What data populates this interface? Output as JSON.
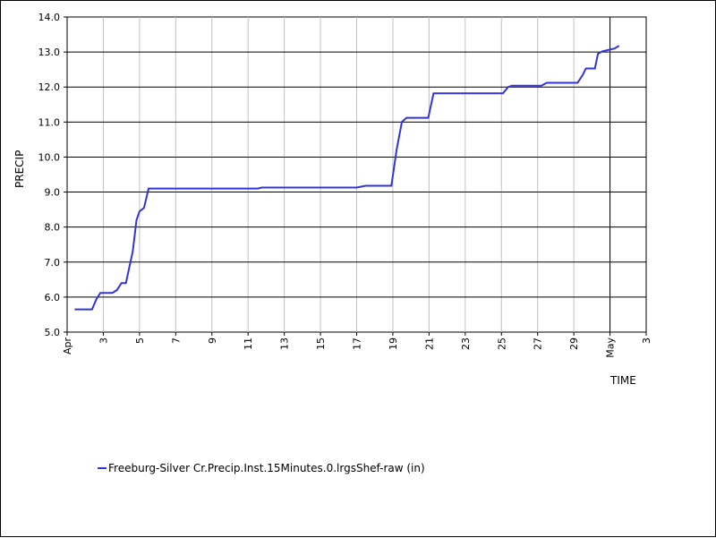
{
  "chart_data": {
    "type": "line",
    "ylabel": "PRECIP",
    "xlabel": "TIME",
    "ylim": [
      5.0,
      14.0
    ],
    "yticks": [
      "5.0",
      "6.0",
      "7.0",
      "8.0",
      "9.0",
      "10.0",
      "11.0",
      "12.0",
      "13.0",
      "14.0"
    ],
    "xlim": [
      "2020-04-01",
      "2020-05-03"
    ],
    "xticks": [
      {
        "date": "2020-04-01",
        "label": "Apr"
      },
      {
        "date": "2020-04-03",
        "label": "3"
      },
      {
        "date": "2020-04-05",
        "label": "5"
      },
      {
        "date": "2020-04-07",
        "label": "7"
      },
      {
        "date": "2020-04-09",
        "label": "9"
      },
      {
        "date": "2020-04-11",
        "label": "11"
      },
      {
        "date": "2020-04-13",
        "label": "13"
      },
      {
        "date": "2020-04-15",
        "label": "15"
      },
      {
        "date": "2020-04-17",
        "label": "17"
      },
      {
        "date": "2020-04-19",
        "label": "19"
      },
      {
        "date": "2020-04-21",
        "label": "21"
      },
      {
        "date": "2020-04-23",
        "label": "23"
      },
      {
        "date": "2020-04-25",
        "label": "25"
      },
      {
        "date": "2020-04-27",
        "label": "27"
      },
      {
        "date": "2020-04-29",
        "label": "29"
      },
      {
        "date": "2020-05-01",
        "label": "May"
      },
      {
        "date": "2020-05-03",
        "label": "3"
      }
    ],
    "grid": true,
    "legend_position": "bottom",
    "series": [
      {
        "name": "Freeburg-Silver Cr.Precip.Inst.15Minutes.0.lrgsShef-raw (in)",
        "color": "#3333dd",
        "x": [
          "2020-04-01T10:00",
          "2020-04-02T09:00",
          "2020-04-02T15:00",
          "2020-04-02T20:00",
          "2020-04-03T12:00",
          "2020-04-03T18:00",
          "2020-04-04T00:00",
          "2020-04-04T06:00",
          "2020-04-04T09:00",
          "2020-04-04T15:00",
          "2020-04-04T20:00",
          "2020-04-05T00:00",
          "2020-04-05T06:00",
          "2020-04-05T12:00",
          "2020-04-05T16:00",
          "2020-04-05T20:00",
          "2020-04-06T00:00",
          "2020-04-11T13:00",
          "2020-04-11T18:00",
          "2020-04-17T00:00",
          "2020-04-17T12:00",
          "2020-04-18T22:00",
          "2020-04-19T05:00",
          "2020-04-19T12:00",
          "2020-04-19T18:00",
          "2020-04-20T00:00",
          "2020-04-20T23:00",
          "2020-04-21T06:00",
          "2020-04-25T02:00",
          "2020-04-25T09:00",
          "2020-04-25T14:00",
          "2020-04-27T05:00",
          "2020-04-27T12:00",
          "2020-04-29T05:00",
          "2020-04-29T12:00",
          "2020-04-29T16:00",
          "2020-04-30T04:00",
          "2020-04-30T08:00",
          "2020-04-30T14:00",
          "2020-05-01T06:00",
          "2020-05-01T12:00"
        ],
        "y": [
          5.65,
          5.65,
          5.95,
          6.12,
          6.12,
          6.2,
          6.4,
          6.4,
          6.7,
          7.3,
          8.2,
          8.45,
          8.55,
          9.1,
          9.1,
          9.1,
          9.1,
          9.1,
          9.13,
          9.13,
          9.18,
          9.18,
          10.2,
          11.0,
          11.12,
          11.12,
          11.12,
          11.82,
          11.82,
          12.0,
          12.04,
          12.04,
          12.12,
          12.12,
          12.35,
          12.53,
          12.53,
          12.95,
          13.02,
          13.1,
          13.18
        ]
      }
    ]
  }
}
